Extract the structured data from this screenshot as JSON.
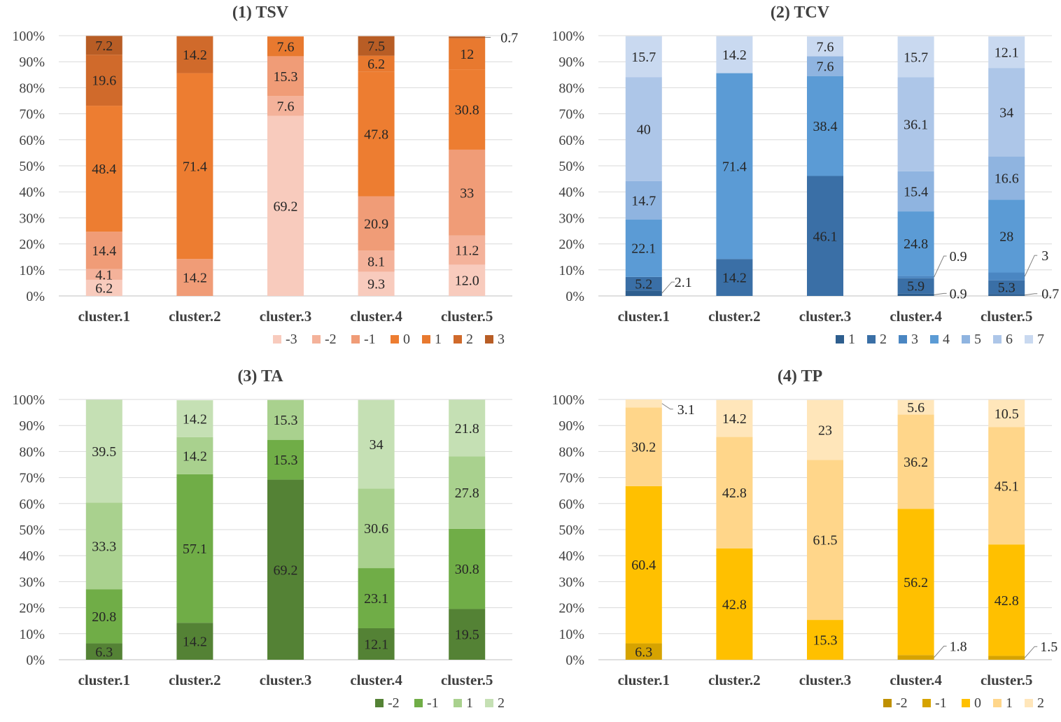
{
  "chart_data": [
    {
      "type": "bar",
      "stacked": true,
      "title": "(1) TSV",
      "categories": [
        "cluster.1",
        "cluster.2",
        "cluster.3",
        "cluster.4",
        "cluster.5"
      ],
      "y_ticks": [
        "0%",
        "10%",
        "20%",
        "30%",
        "40%",
        "50%",
        "60%",
        "70%",
        "80%",
        "90%",
        "100%"
      ],
      "ylim": [
        0,
        100
      ],
      "legend_position": "bottom-right",
      "series": [
        {
          "name": "-3",
          "color": "#F8CBBD",
          "values": [
            6.2,
            0,
            69.2,
            9.3,
            12.0
          ],
          "labels": [
            "6.2",
            "",
            "69.2",
            "9.3",
            "12.0"
          ]
        },
        {
          "name": "-2",
          "color": "#F4B29A",
          "values": [
            4.1,
            0,
            7.6,
            8.1,
            11.2
          ],
          "labels": [
            "4.1",
            "",
            "7.6",
            "8.1",
            "11.2"
          ]
        },
        {
          "name": "-1",
          "color": "#F09C77",
          "values": [
            14.4,
            14.2,
            15.3,
            20.9,
            33
          ],
          "labels": [
            "14.4",
            "14.2",
            "15.3",
            "20.9",
            "33"
          ]
        },
        {
          "name": "0",
          "color": "#ED7D31",
          "values": [
            48.4,
            71.4,
            0,
            47.8,
            30.8
          ],
          "labels": [
            "48.4",
            "71.4",
            "",
            "47.8",
            "30.8"
          ]
        },
        {
          "name": "1",
          "color": "#E8792F",
          "values": [
            0,
            0,
            7.6,
            6.2,
            12
          ],
          "labels": [
            "",
            "",
            "7.6",
            "6.2",
            "12"
          ]
        },
        {
          "name": "2",
          "color": "#D06A2B",
          "values": [
            19.6,
            14.2,
            0,
            0,
            0
          ],
          "labels": [
            "19.6",
            "14.2",
            "",
            "",
            ""
          ]
        },
        {
          "name": "3",
          "color": "#B85D25",
          "values": [
            7.2,
            0,
            0,
            7.5,
            0.7
          ],
          "labels": [
            "7.2",
            "",
            "",
            "7.5",
            ""
          ]
        }
      ],
      "callouts": [
        {
          "category": 4,
          "series": 6,
          "text": "0.7"
        }
      ]
    },
    {
      "type": "bar",
      "stacked": true,
      "title": "(2) TCV",
      "categories": [
        "cluster.1",
        "cluster.2",
        "cluster.3",
        "cluster.4",
        "cluster.5"
      ],
      "y_ticks": [
        "0%",
        "10%",
        "20%",
        "30%",
        "40%",
        "50%",
        "60%",
        "70%",
        "80%",
        "90%",
        "100%"
      ],
      "ylim": [
        0,
        100
      ],
      "legend_position": "bottom-right",
      "series": [
        {
          "name": "1",
          "color": "#2E5E8E",
          "values": [
            2.1,
            0,
            0,
            0.9,
            0.7
          ],
          "labels": [
            "",
            "",
            "",
            "",
            ""
          ]
        },
        {
          "name": "2",
          "color": "#3A6FA6",
          "values": [
            5.2,
            14.2,
            46.1,
            5.9,
            5.3
          ],
          "labels": [
            "5.2",
            "14.2",
            "46.1",
            "5.9",
            "5.3"
          ]
        },
        {
          "name": "3",
          "color": "#4A86C2",
          "values": [
            0,
            0,
            0,
            0.9,
            3
          ],
          "labels": [
            "",
            "",
            "",
            "",
            ""
          ]
        },
        {
          "name": "4",
          "color": "#5B9BD5",
          "values": [
            22.1,
            71.4,
            38.4,
            24.8,
            28
          ],
          "labels": [
            "22.1",
            "71.4",
            "38.4",
            "24.8",
            "28"
          ]
        },
        {
          "name": "5",
          "color": "#8FB4E0",
          "values": [
            14.7,
            0,
            7.6,
            15.4,
            16.6
          ],
          "labels": [
            "14.7",
            "",
            "7.6",
            "15.4",
            "16.6"
          ]
        },
        {
          "name": "6",
          "color": "#ADC6E8",
          "values": [
            40,
            0,
            0,
            36.1,
            34
          ],
          "labels": [
            "40",
            "",
            "",
            "36.1",
            "34"
          ]
        },
        {
          "name": "7",
          "color": "#C9D9F0",
          "values": [
            15.7,
            14.2,
            7.6,
            15.7,
            12.1
          ],
          "labels": [
            "15.7",
            "14.2",
            "7.6",
            "15.7",
            "12.1"
          ]
        }
      ],
      "callouts": [
        {
          "category": 0,
          "series": 0,
          "text": "2.1"
        },
        {
          "category": 3,
          "series": 2,
          "text": "0.9"
        },
        {
          "category": 3,
          "series": 0,
          "text": "0.9"
        },
        {
          "category": 4,
          "series": 2,
          "text": "3"
        },
        {
          "category": 4,
          "series": 0,
          "text": "0.7"
        }
      ]
    },
    {
      "type": "bar",
      "stacked": true,
      "title": "(3) TA",
      "categories": [
        "cluster.1",
        "cluster.2",
        "cluster.3",
        "cluster.4",
        "cluster.5"
      ],
      "y_ticks": [
        "0%",
        "10%",
        "20%",
        "30%",
        "40%",
        "50%",
        "60%",
        "70%",
        "80%",
        "90%",
        "100%"
      ],
      "ylim": [
        0,
        100
      ],
      "legend_position": "bottom-right",
      "series": [
        {
          "name": "-2",
          "color": "#548235",
          "values": [
            6.3,
            14.2,
            69.2,
            12.1,
            19.5
          ],
          "labels": [
            "6.3",
            "14.2",
            "69.2",
            "12.1",
            "19.5"
          ]
        },
        {
          "name": "-1",
          "color": "#70AD47",
          "values": [
            20.8,
            57.1,
            15.3,
            23.1,
            30.8
          ],
          "labels": [
            "20.8",
            "57.1",
            "15.3",
            "23.1",
            "30.8"
          ]
        },
        {
          "name": "1",
          "color": "#A9D18E",
          "values": [
            33.3,
            14.2,
            15.3,
            30.6,
            27.8
          ],
          "labels": [
            "33.3",
            "14.2",
            "15.3",
            "30.6",
            "27.8"
          ]
        },
        {
          "name": "2",
          "color": "#C5E0B4",
          "values": [
            39.5,
            14.2,
            0,
            34,
            21.8
          ],
          "labels": [
            "39.5",
            "14.2",
            "",
            "34",
            "21.8"
          ]
        }
      ],
      "callouts": []
    },
    {
      "type": "bar",
      "stacked": true,
      "title": "(4) TP",
      "categories": [
        "cluster.1",
        "cluster.2",
        "cluster.3",
        "cluster.4",
        "cluster.5"
      ],
      "y_ticks": [
        "0%",
        "10%",
        "20%",
        "30%",
        "40%",
        "50%",
        "60%",
        "70%",
        "80%",
        "90%",
        "100%"
      ],
      "ylim": [
        0,
        100
      ],
      "legend_position": "bottom-right",
      "series": [
        {
          "name": "-2",
          "color": "#BF9000",
          "values": [
            0,
            0,
            0,
            0,
            0
          ],
          "labels": [
            "",
            "",
            "",
            "",
            ""
          ]
        },
        {
          "name": "-1",
          "color": "#D6A300",
          "values": [
            6.3,
            0,
            0,
            1.8,
            1.5
          ],
          "labels": [
            "6.3",
            "",
            "",
            "",
            ""
          ]
        },
        {
          "name": "0",
          "color": "#FFC000",
          "values": [
            60.4,
            42.8,
            15.3,
            56.2,
            42.8
          ],
          "labels": [
            "60.4",
            "42.8",
            "15.3",
            "56.2",
            "42.8"
          ]
        },
        {
          "name": "1",
          "color": "#FFD68A",
          "values": [
            30.2,
            42.8,
            61.5,
            36.2,
            45.1
          ],
          "labels": [
            "30.2",
            "42.8",
            "61.5",
            "36.2",
            "45.1"
          ]
        },
        {
          "name": "2",
          "color": "#FFE6BA",
          "values": [
            3.1,
            14.2,
            23,
            5.6,
            10.5
          ],
          "labels": [
            "",
            "14.2",
            "23",
            "5.6",
            "10.5"
          ]
        }
      ],
      "callouts": [
        {
          "category": 0,
          "series": 4,
          "text": "3.1"
        },
        {
          "category": 3,
          "series": 1,
          "text": "1.8"
        },
        {
          "category": 4,
          "series": 1,
          "text": "1.5"
        }
      ]
    }
  ]
}
